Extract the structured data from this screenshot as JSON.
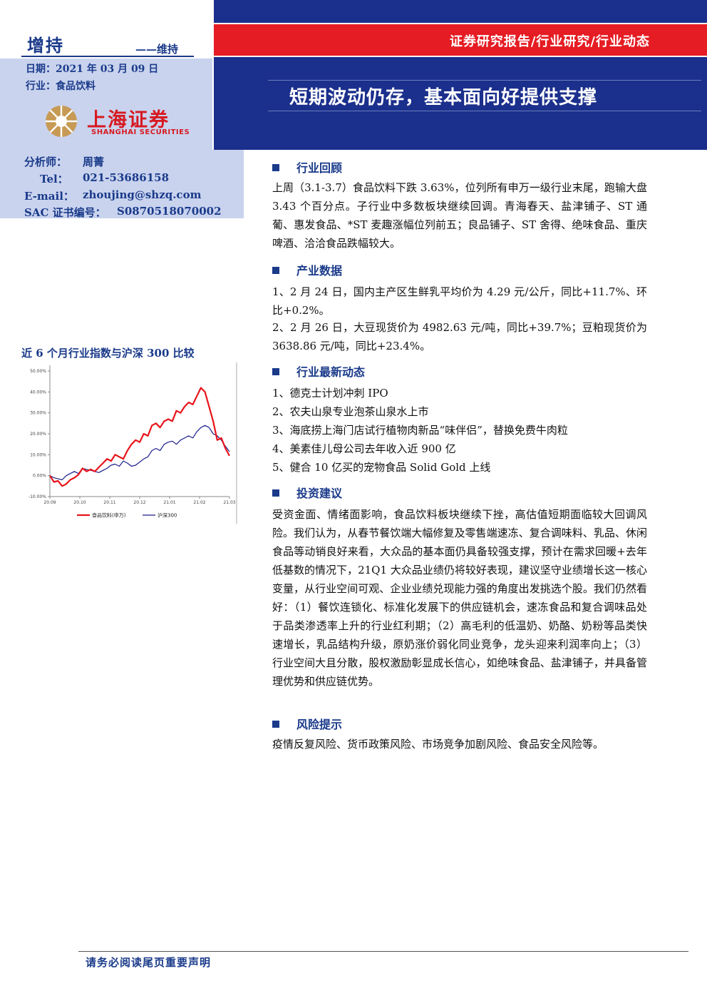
{
  "header": {
    "rating": "增持",
    "rating_change": "——维持",
    "date": "日期：2021 年 03 月 09 日",
    "industry": "行业：食品饮料",
    "report_type": "证券研究报告/行业研究/行业动态",
    "title": "短期波动仍存，基本面向好提供支撑"
  },
  "logo": {
    "cn": "上海证券",
    "en": "SHANGHAI SECURITIES",
    "color": "#d71920",
    "mark_color": "#b48a4a"
  },
  "analyst": {
    "name_label": "分析师：",
    "name": "周菁",
    "tel_label": "Tel：",
    "tel": "021-53686158",
    "email_label": "E-mail：",
    "email": "zhoujing@shzq.com",
    "sac_label": "SAC 证书编号：",
    "sac": "S0870518070002"
  },
  "sections": [
    {
      "heading": "行业回顾",
      "paragraphs": [
        "上周（3.1-3.7）食品饮料下跌 3.63%，位列所有申万一级行业末尾，跑输大盘 3.43 个百分点。子行业中多数板块继续回调。青海春天、盐津铺子、ST 通葡、惠发食品、*ST 麦趣涨幅位列前五；良品铺子、ST 舍得、绝味食品、重庆啤酒、洽洽食品跌幅较大。"
      ]
    },
    {
      "heading": "产业数据",
      "paragraphs": [
        "1、2 月 24 日，国内主产区生鲜乳平均价为 4.29 元/公斤，同比+11.7%、环比+0.2%。",
        "2、2 月 26 日，大豆现货价为 4982.63 元/吨，同比+39.7%；豆粕现货价为 3638.86 元/吨，同比+23.4%。"
      ]
    },
    {
      "heading": "行业最新动态",
      "lines": [
        "1、德克士计划冲刺 IPO",
        "2、农夫山泉专业泡茶山泉水上市",
        "3、海底捞上海门店试行植物肉新品“味伴侣”，替换免费牛肉粒",
        "4、美素佳儿母公司去年收入近 900 亿",
        "5、健合 10 亿买的宠物食品 Solid Gold 上线"
      ]
    },
    {
      "heading": "投资建议",
      "paragraphs": [
        "受资金面、情绪面影响，食品饮料板块继续下挫，高估值短期面临较大回调风险。我们认为，从春节餐饮端大幅修复及零售端速冻、复合调味料、乳品、休闲食品等动销良好来看，大众品的基本面仍具备较强支撑，预计在需求回暖+去年低基数的情况下，21Q1 大众品业绩仍将较好表现，建议坚守业绩增长这一核心变量，从行业空间可观、企业业绩兑现能力强的角度出发挑选个股。我们仍然看好：（1）餐饮连锁化、标准化发展下的供应链机会，速冻食品和复合调味品处于品类渗透率上升的行业红利期；（2）高毛利的低温奶、奶酪、奶粉等品类快速增长，乳品结构升级，原奶涨价弱化同业竞争，龙头迎来利润率向上；（3）行业空间大且分散，股权激励彰显成长信心，如绝味食品、盐津铺子，并具备管理优势和供应链优势。"
      ]
    },
    {
      "heading": "风险提示",
      "paragraphs": [
        "疫情反复风险、货币政策风险、市场竞争加剧风险、食品安全风险等。"
      ]
    }
  ],
  "chart_title": "近 6 个月行业指数与沪深 300 比较",
  "chart_data": {
    "type": "line",
    "x_ticks": [
      "20.09",
      "20.10",
      "20.11",
      "20.12",
      "21.01",
      "21.02",
      "21.03"
    ],
    "y_ticks": [
      "50.00%",
      "40.00%",
      "30.00%",
      "20.00%",
      "10.00%",
      "0.00%",
      "-10.00%"
    ],
    "ylim": [
      -10,
      50
    ],
    "series": [
      {
        "name": "食品饮料(申万)",
        "color": "#e8141b",
        "values": [
          0.0,
          -3.0,
          -2.5,
          -5.0,
          -4.0,
          -2.0,
          -1.0,
          0.5,
          3.5,
          2.0,
          3.0,
          2.0,
          4.0,
          6.0,
          8.0,
          7.0,
          10.0,
          9.0,
          8.0,
          12.0,
          15.0,
          17.0,
          16.0,
          20.0,
          19.0,
          24.0,
          25.0,
          23.0,
          26.0,
          27.0,
          26.0,
          31.0,
          30.0,
          33.0,
          35.0,
          34.0,
          38.0,
          42.0,
          40.0,
          33.0,
          26.0,
          17.0,
          18.0,
          13.0,
          9.5
        ]
      },
      {
        "name": "沪深300",
        "color": "#1c1f8a",
        "values": [
          0.0,
          -1.0,
          -1.5,
          -2.0,
          0.0,
          1.0,
          2.0,
          1.0,
          3.5,
          3.0,
          2.5,
          2.0,
          1.5,
          2.5,
          3.5,
          5.0,
          5.5,
          4.5,
          7.0,
          6.0,
          4.5,
          5.0,
          6.5,
          8.0,
          9.0,
          12.0,
          13.0,
          12.0,
          15.0,
          16.0,
          16.5,
          15.0,
          17.0,
          18.0,
          19.0,
          18.0,
          21.0,
          23.0,
          24.0,
          23.0,
          20.0,
          19.0,
          17.0,
          14.0,
          11.5
        ]
      }
    ]
  },
  "footer": "请务必阅读尾页重要声明"
}
